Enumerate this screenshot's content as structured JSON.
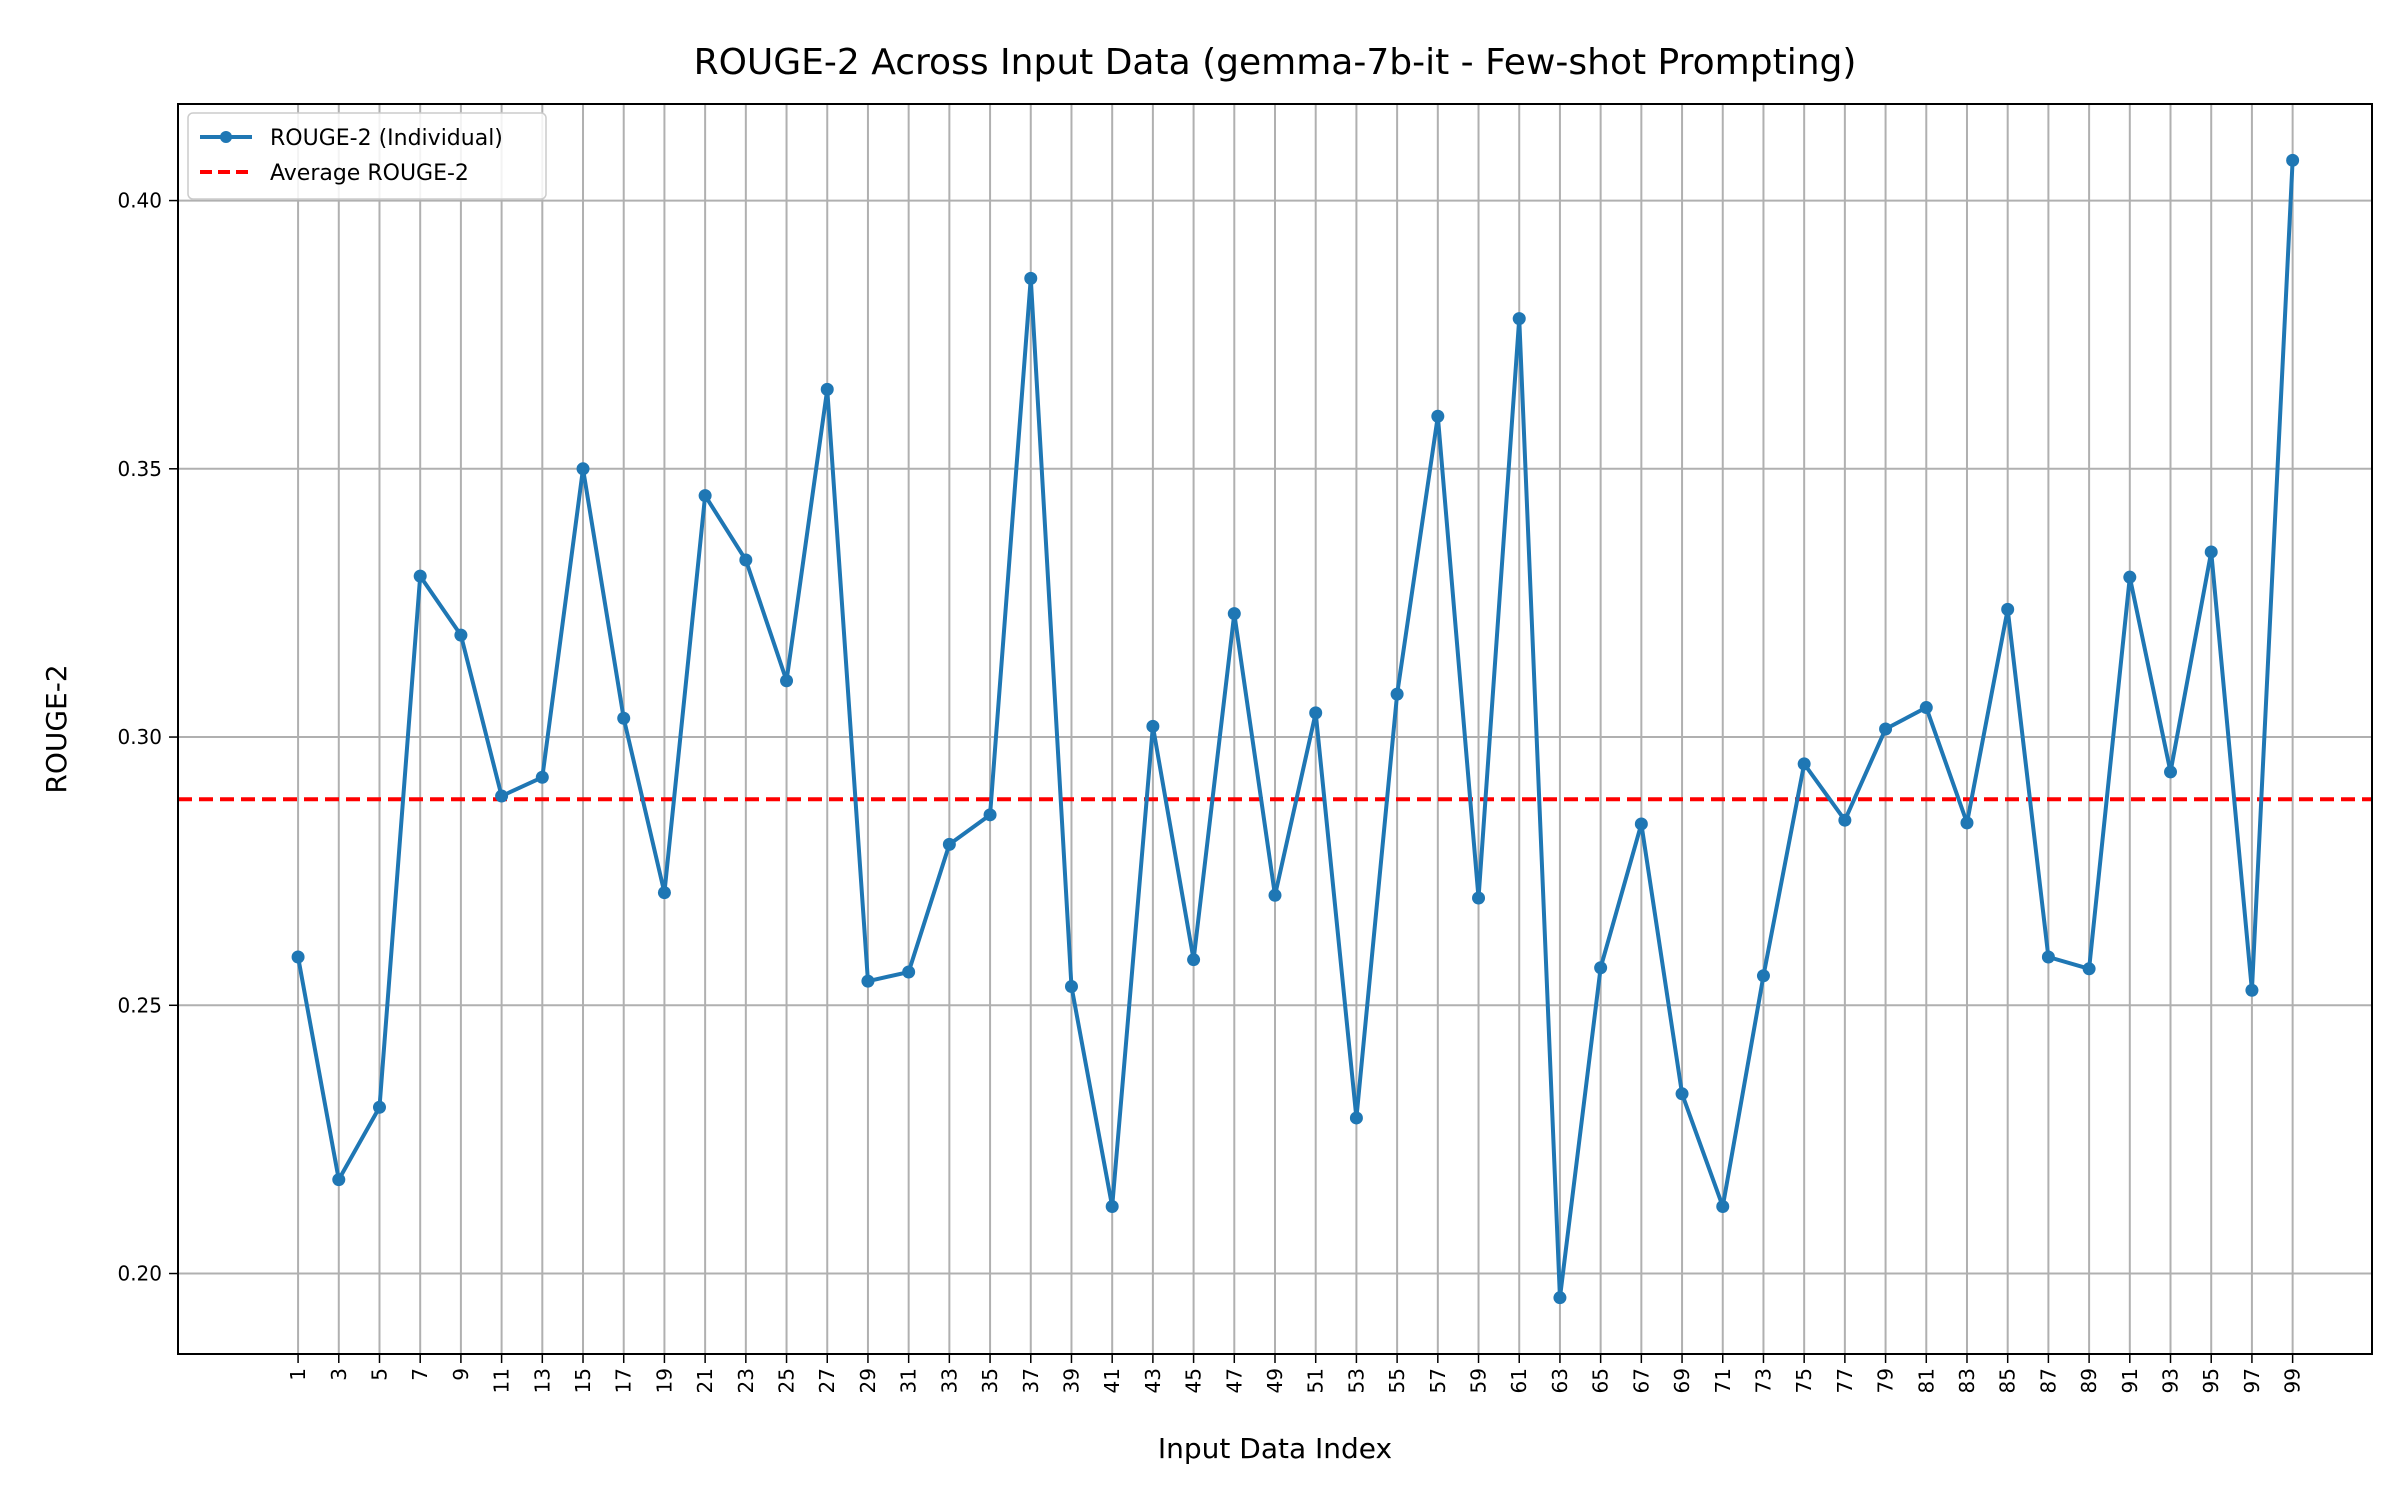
{
  "chart_data": {
    "type": "line",
    "title": "ROUGE-2 Across Input Data (gemma-7b-it - Few-shot Prompting)",
    "xlabel": "Input Data Index",
    "ylabel": "ROUGE-2",
    "x": [
      1,
      3,
      5,
      7,
      9,
      11,
      13,
      15,
      17,
      19,
      21,
      23,
      25,
      27,
      29,
      31,
      33,
      35,
      37,
      39,
      41,
      43,
      45,
      47,
      49,
      51,
      53,
      55,
      57,
      59,
      61,
      63,
      65,
      67,
      69,
      71,
      73,
      75,
      77,
      79,
      81,
      83,
      85,
      87,
      89,
      91,
      93,
      95,
      97,
      99
    ],
    "xticks": [
      "1",
      "3",
      "5",
      "7",
      "9",
      "11",
      "13",
      "15",
      "17",
      "19",
      "21",
      "23",
      "25",
      "27",
      "29",
      "31",
      "33",
      "35",
      "37",
      "39",
      "41",
      "43",
      "45",
      "47",
      "49",
      "51",
      "53",
      "55",
      "57",
      "59",
      "61",
      "63",
      "65",
      "67",
      "69",
      "71",
      "73",
      "75",
      "77",
      "79",
      "81",
      "83",
      "85",
      "87",
      "89",
      "91",
      "93",
      "95",
      "97",
      "99"
    ],
    "yticks": [
      "0.20",
      "0.25",
      "0.30",
      "0.35",
      "0.40"
    ],
    "xlim": [
      -4.9,
      102.9
    ],
    "ylim": [
      0.185,
      0.418
    ],
    "grid": true,
    "legend_position": "top-left",
    "series": [
      {
        "name": "ROUGE-2 (Individual)",
        "color": "#1f77b4",
        "values": [
          0.259,
          0.2175,
          0.231,
          0.33,
          0.319,
          0.289,
          0.2925,
          0.35,
          0.3035,
          0.271,
          0.345,
          0.333,
          0.3105,
          0.3648,
          0.2545,
          0.2562,
          0.28,
          0.2855,
          0.3855,
          0.2535,
          0.2125,
          0.302,
          0.2585,
          0.323,
          0.2705,
          0.3045,
          0.229,
          0.308,
          0.3598,
          0.27,
          0.378,
          0.1955,
          0.257,
          0.2838,
          0.2335,
          0.2125,
          0.2555,
          0.295,
          0.2845,
          0.3015,
          0.3055,
          0.284,
          0.3238,
          0.259,
          0.2568,
          0.3298,
          0.2935,
          0.3345,
          0.2528,
          0.4075
        ]
      }
    ],
    "average": {
      "name": "Average ROUGE-2",
      "value": 0.2884,
      "color": "#ff0000"
    }
  }
}
